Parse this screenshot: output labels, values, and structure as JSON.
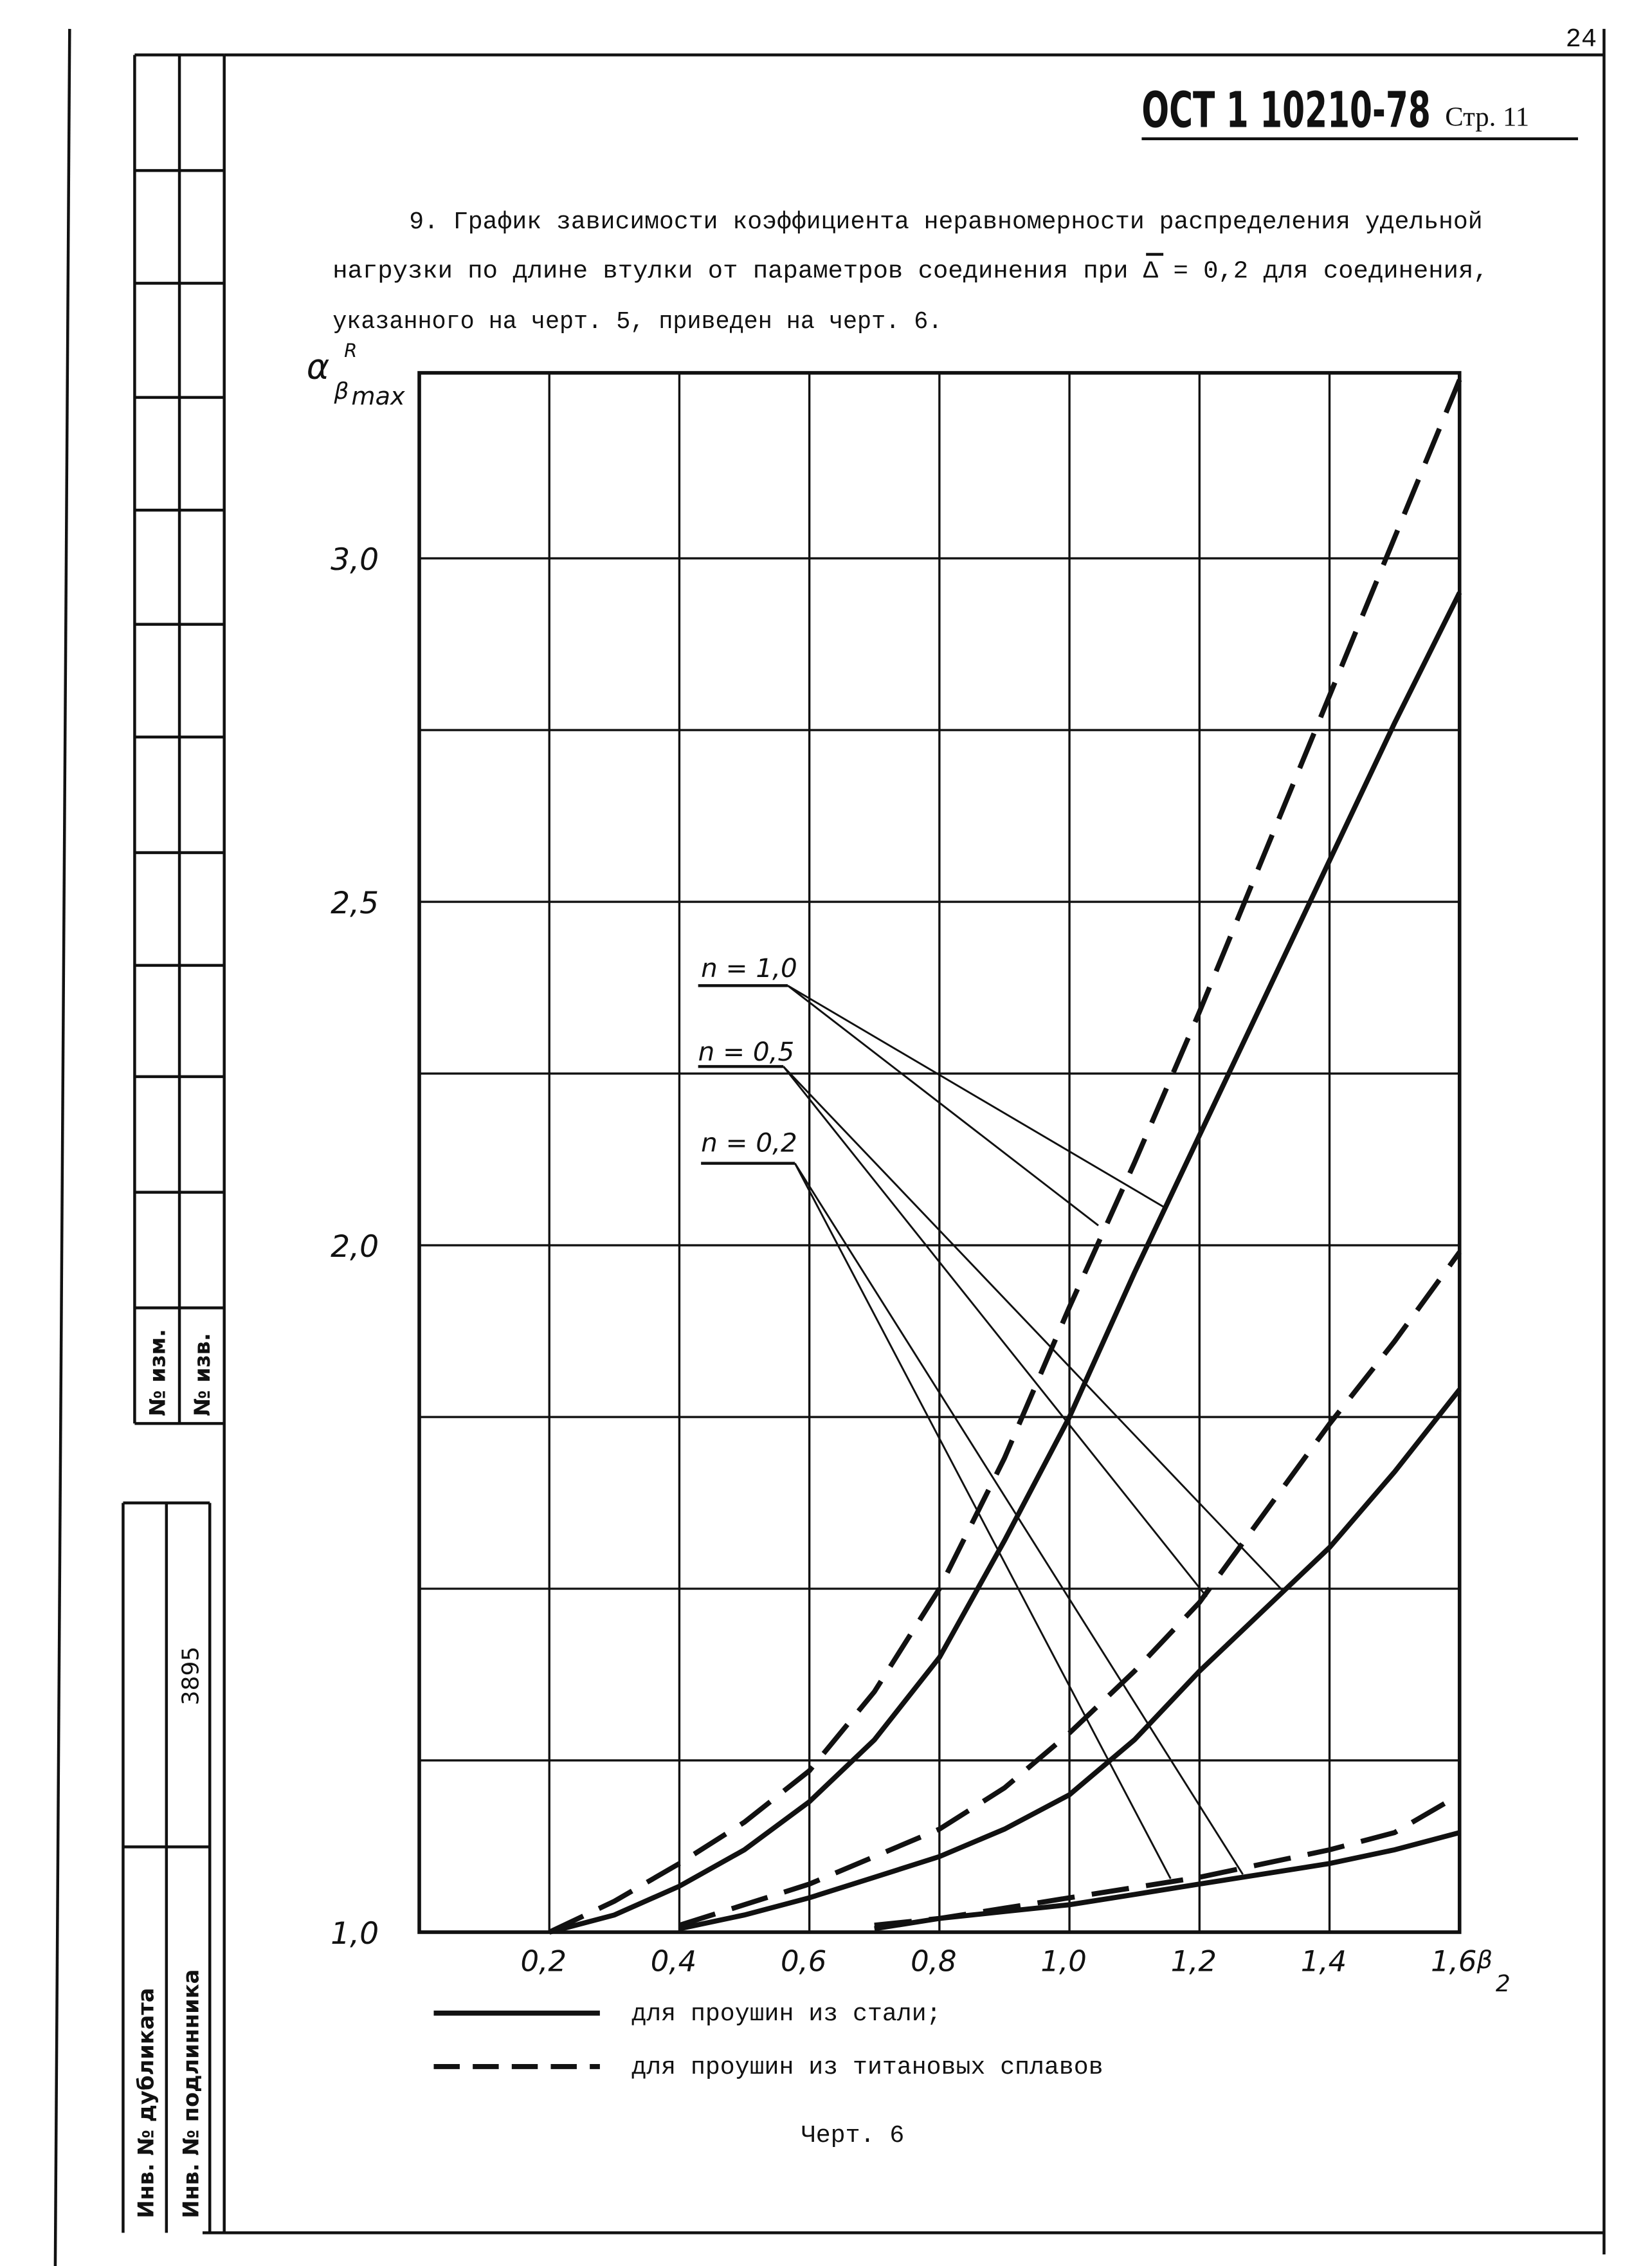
{
  "page_number": "24",
  "header": {
    "code": "ОСТ 1 10210-78",
    "page": "Стр. 11"
  },
  "paragraph": {
    "lines": [
      "9. График зависимости коэффициента неравномерности распределения удельной",
      "нагрузки по длине втулки от параметров соединения при  Δ = 0,2 для соединения,",
      "указанного на черт. 5, приведен на черт. 6."
    ]
  },
  "stamp": {
    "change_no": "№ изм.",
    "notice_no": "№ изв.",
    "number": "3895",
    "duplicate_inv": "Инв. № дубликата",
    "original_inv": "Инв. № подлинника"
  },
  "chart_data": {
    "type": "line",
    "y_label": {
      "symbol": "α",
      "sup": "R",
      "sub": "β",
      "sub2": "max"
    },
    "x_label": {
      "symbol": "β",
      "sub": "2"
    },
    "x": [
      0.2,
      0.3,
      0.4,
      0.5,
      0.6,
      0.7,
      0.8,
      0.9,
      1.0,
      1.1,
      1.2,
      1.3,
      1.4,
      1.5,
      1.6
    ],
    "xlim": [
      0,
      1.6
    ],
    "xticks": [
      {
        "value": 0.2,
        "label": "0,2"
      },
      {
        "value": 0.4,
        "label": "0,4"
      },
      {
        "value": 0.6,
        "label": "0,6"
      },
      {
        "value": 0.8,
        "label": "0,8"
      },
      {
        "value": 1.0,
        "label": "1,0"
      },
      {
        "value": 1.2,
        "label": "1,2"
      },
      {
        "value": 1.4,
        "label": "1,4"
      },
      {
        "value": 1.6,
        "label": "1,6"
      }
    ],
    "ylim": [
      1.0,
      3.27
    ],
    "yticks": [
      {
        "value": 1.0,
        "label": "1,0"
      },
      {
        "value": 2.0,
        "label": "2,0"
      },
      {
        "value": 2.5,
        "label": "2,5"
      },
      {
        "value": 3.0,
        "label": "3,0"
      }
    ],
    "ygrid": [
      1.25,
      1.5,
      1.75,
      2.25,
      2.75
    ],
    "grid": true,
    "color": "#111111",
    "legend": [
      {
        "name": "для проушин из стали;",
        "dash": false
      },
      {
        "name": "для проушин из титановых сплавов",
        "dash": true
      }
    ],
    "series": [
      {
        "name": "n = 1,0",
        "steel": [
          1.0,
          1.025,
          1.067,
          1.12,
          1.19,
          1.28,
          1.4,
          1.57,
          1.75,
          1.96,
          2.16,
          2.36,
          2.56,
          2.76,
          2.95
        ],
        "titanium": [
          1.0,
          1.045,
          1.1,
          1.16,
          1.235,
          1.35,
          1.5,
          1.69,
          1.91,
          2.12,
          2.34,
          2.57,
          2.8,
          3.03,
          3.26
        ]
      },
      {
        "name": "n = 0,5",
        "steel": [
          null,
          null,
          1.005,
          1.025,
          1.05,
          1.08,
          1.11,
          1.15,
          1.2,
          1.28,
          1.38,
          1.47,
          1.56,
          1.67,
          1.79
        ],
        "titanium": [
          null,
          null,
          1.01,
          1.04,
          1.07,
          1.11,
          1.15,
          1.21,
          1.29,
          1.38,
          1.48,
          1.61,
          1.74,
          1.86,
          1.99
        ]
      },
      {
        "name": "n = 0,2",
        "steel": [
          null,
          null,
          null,
          null,
          null,
          1.005,
          1.02,
          1.03,
          1.04,
          1.055,
          1.07,
          1.085,
          1.1,
          1.12,
          1.145
        ],
        "titanium": [
          null,
          null,
          null,
          null,
          null,
          1.01,
          1.02,
          1.035,
          1.05,
          1.065,
          1.08,
          1.1,
          1.12,
          1.145,
          1.2
        ]
      }
    ],
    "caption": "Черт. 6"
  }
}
